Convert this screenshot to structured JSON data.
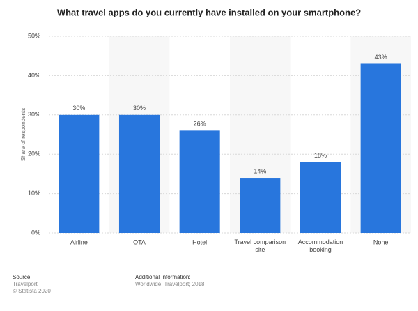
{
  "chart_data": {
    "type": "bar",
    "title": "What travel apps do you currently have installed on your smartphone?",
    "y_label": "Share of respondents",
    "categories": [
      "Airline",
      "OTA",
      "Hotel",
      "Travel comparison site",
      "Accommodation booking",
      "None"
    ],
    "values": [
      30,
      30,
      26,
      14,
      18,
      43
    ],
    "value_labels": [
      "30%",
      "30%",
      "26%",
      "14%",
      "18%",
      "43%"
    ],
    "color": "#2876dd",
    "ylim": [
      0,
      50
    ],
    "yticks": [
      {
        "value": 0,
        "label": "0%"
      },
      {
        "value": 10,
        "label": "10%"
      },
      {
        "value": 20,
        "label": "20%"
      },
      {
        "value": 30,
        "label": "30%"
      },
      {
        "value": 40,
        "label": "40%"
      },
      {
        "value": 50,
        "label": "50%"
      }
    ],
    "grid": true
  },
  "footer": {
    "source_heading": "Source",
    "source": "Travelport",
    "copyright": "© Statista 2020",
    "info_heading": "Additional Information:",
    "info": "Worldwide; Travelport; 2018"
  }
}
